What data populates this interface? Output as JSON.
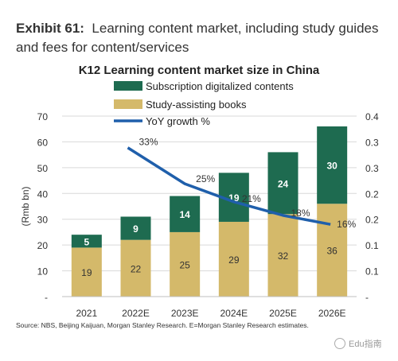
{
  "exhibit": {
    "label": "Exhibit 61:",
    "text": "Learning content market, including study guides and fees for content/services"
  },
  "chart_data": {
    "type": "bar",
    "title": "K12 Learning content market size in China",
    "ylabel": "(Rmb bn)",
    "categories": [
      "2021",
      "2022E",
      "2023E",
      "2024E",
      "2025E",
      "2026E"
    ],
    "ylim": [
      0,
      70
    ],
    "y2lim": [
      0,
      0.4
    ],
    "yticks": [
      "-",
      "10",
      "20",
      "30",
      "40",
      "50",
      "60",
      "70"
    ],
    "y2ticks": [
      "-",
      "0.1",
      "0.1",
      "0.2",
      "0.2",
      "0.3",
      "0.3",
      "0.4"
    ],
    "series": [
      {
        "name": "Study-assisting books",
        "kind": "bar",
        "color": "#d4b96a",
        "values": [
          19,
          22,
          25,
          29,
          32,
          36
        ]
      },
      {
        "name": "Subscription digitalized contents",
        "kind": "bar",
        "color": "#1e6b50",
        "values": [
          5,
          9,
          14,
          19,
          24,
          30
        ]
      },
      {
        "name": "YoY growth %",
        "kind": "line",
        "color": "#1f5fab",
        "axis": "right",
        "x": [
          "2022E",
          "2023E",
          "2024E",
          "2025E",
          "2026E"
        ],
        "values": [
          0.33,
          0.25,
          0.21,
          0.18,
          0.16
        ],
        "labels": [
          "33%",
          "25%",
          "21%",
          "18%",
          "16%"
        ]
      }
    ]
  },
  "legend": [
    {
      "label": "Subscription digitalized contents",
      "color": "#1e6b50",
      "kind": "box"
    },
    {
      "label": "Study-assisting books",
      "color": "#d4b96a",
      "kind": "box"
    },
    {
      "label": "YoY growth %",
      "color": "#1f5fab",
      "kind": "line"
    }
  ],
  "source": "Source: NBS, Beijing Kaijuan, Morgan Stanley Research. E=Morgan Stanley Research estimates.",
  "watermark": "Edu指南"
}
